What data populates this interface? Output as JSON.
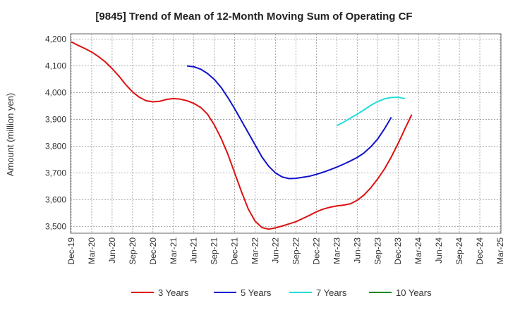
{
  "chart_data": {
    "type": "line",
    "title": "[9845]  Trend of Mean of 12-Month Moving Sum of Operating CF",
    "xlabel": "",
    "ylabel": "Amount (million yen)",
    "ylim": [
      3475,
      4220
    ],
    "yticks": [
      3500,
      3600,
      3700,
      3800,
      3900,
      4000,
      4100,
      4200
    ],
    "ytick_labels": [
      "3,500",
      "3,600",
      "3,700",
      "3,800",
      "3,900",
      "4,000",
      "4,100",
      "4,200"
    ],
    "x_tick_labels": [
      "Dec-19",
      "Mar-20",
      "Jun-20",
      "Sep-20",
      "Dec-20",
      "Mar-21",
      "Jun-21",
      "Sep-21",
      "Dec-21",
      "Mar-22",
      "Jun-22",
      "Sep-22",
      "Dec-22",
      "Mar-23",
      "Jun-23",
      "Sep-23",
      "Dec-23",
      "Mar-24",
      "Jun-24",
      "Sep-24",
      "Dec-24",
      "Mar-25"
    ],
    "grid": true,
    "legend": "bottom",
    "series": [
      {
        "name": "3 Years",
        "color": "#dd1111",
        "points": [
          [
            0,
            4190
          ],
          [
            1,
            4177
          ],
          [
            2,
            4165
          ],
          [
            3,
            4152
          ],
          [
            4,
            4135
          ],
          [
            5,
            4115
          ],
          [
            6,
            4090
          ],
          [
            7,
            4062
          ],
          [
            8,
            4030
          ],
          [
            9,
            4003
          ],
          [
            10,
            3983
          ],
          [
            11,
            3970
          ],
          [
            12,
            3966
          ],
          [
            13,
            3968
          ],
          [
            14,
            3975
          ],
          [
            15,
            3978
          ],
          [
            16,
            3976
          ],
          [
            17,
            3970
          ],
          [
            18,
            3960
          ],
          [
            19,
            3945
          ],
          [
            20,
            3920
          ],
          [
            21,
            3880
          ],
          [
            22,
            3830
          ],
          [
            23,
            3770
          ],
          [
            24,
            3700
          ],
          [
            25,
            3630
          ],
          [
            26,
            3565
          ],
          [
            27,
            3520
          ],
          [
            28,
            3496
          ],
          [
            29,
            3490
          ],
          [
            30,
            3495
          ],
          [
            31,
            3502
          ],
          [
            32,
            3510
          ],
          [
            33,
            3518
          ],
          [
            34,
            3530
          ],
          [
            35,
            3542
          ],
          [
            36,
            3555
          ],
          [
            37,
            3565
          ],
          [
            38,
            3572
          ],
          [
            39,
            3577
          ],
          [
            40,
            3580
          ],
          [
            41,
            3585
          ],
          [
            42,
            3598
          ],
          [
            43,
            3618
          ],
          [
            44,
            3645
          ],
          [
            45,
            3678
          ],
          [
            46,
            3715
          ],
          [
            47,
            3760
          ],
          [
            48,
            3810
          ],
          [
            49,
            3865
          ],
          [
            50,
            3918
          ]
        ]
      },
      {
        "name": "5 Years",
        "color": "#1111cc",
        "points": [
          [
            17,
            4100
          ],
          [
            18,
            4097
          ],
          [
            19,
            4088
          ],
          [
            20,
            4072
          ],
          [
            21,
            4050
          ],
          [
            22,
            4020
          ],
          [
            23,
            3982
          ],
          [
            24,
            3940
          ],
          [
            25,
            3895
          ],
          [
            26,
            3850
          ],
          [
            27,
            3805
          ],
          [
            28,
            3760
          ],
          [
            29,
            3725
          ],
          [
            30,
            3700
          ],
          [
            31,
            3685
          ],
          [
            32,
            3679
          ],
          [
            33,
            3680
          ],
          [
            34,
            3684
          ],
          [
            35,
            3688
          ],
          [
            36,
            3695
          ],
          [
            37,
            3703
          ],
          [
            38,
            3712
          ],
          [
            39,
            3722
          ],
          [
            40,
            3733
          ],
          [
            41,
            3745
          ],
          [
            42,
            3758
          ],
          [
            43,
            3775
          ],
          [
            44,
            3798
          ],
          [
            45,
            3827
          ],
          [
            46,
            3865
          ],
          [
            47,
            3908
          ]
        ]
      },
      {
        "name": "7 Years",
        "color": "#22dddd",
        "points": [
          [
            39,
            3877
          ],
          [
            40,
            3890
          ],
          [
            41,
            3905
          ],
          [
            42,
            3920
          ],
          [
            43,
            3936
          ],
          [
            44,
            3953
          ],
          [
            45,
            3967
          ],
          [
            46,
            3977
          ],
          [
            47,
            3982
          ],
          [
            48,
            3983
          ],
          [
            49,
            3978
          ]
        ]
      },
      {
        "name": "10 Years",
        "color": "#228822",
        "points": []
      }
    ]
  }
}
